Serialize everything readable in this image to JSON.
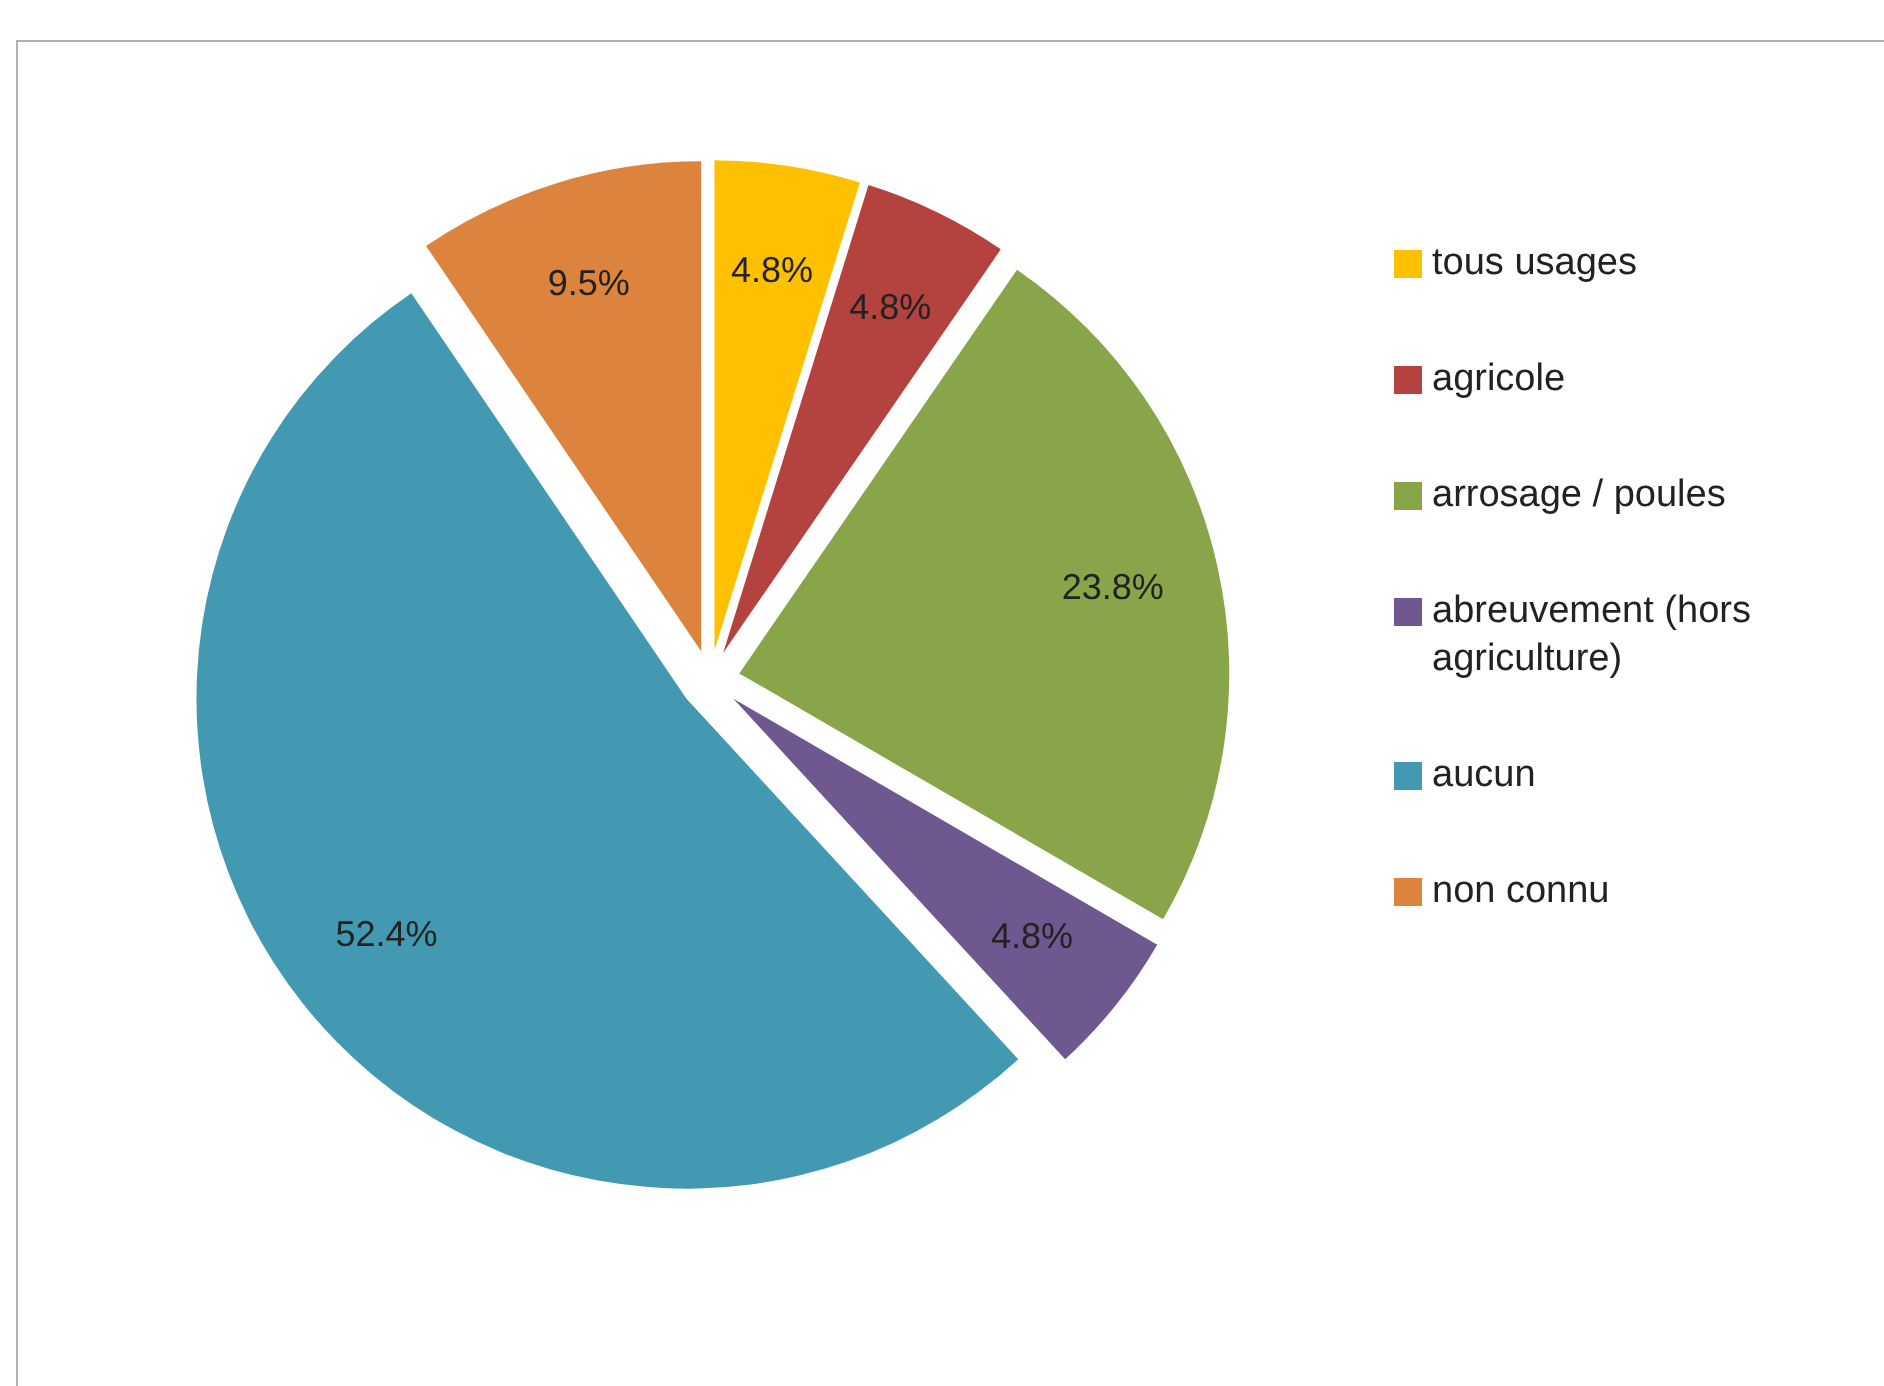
{
  "chart_data": {
    "type": "pie",
    "categories": [
      "tous usages",
      "agricole",
      "arrosage / poules",
      "abreuvement (hors agriculture)",
      "aucun",
      "non connu"
    ],
    "values": [
      4.8,
      4.8,
      23.8,
      4.8,
      52.4,
      9.5
    ],
    "value_labels": [
      "4.8%",
      "4.8%",
      "23.8%",
      "4.8%",
      "52.4%",
      "9.5%"
    ],
    "colors": [
      "#ffc000",
      "#b4433f",
      "#88a54a",
      "#6f5890",
      "#4299b1",
      "#dc843d"
    ],
    "legend": "right"
  }
}
